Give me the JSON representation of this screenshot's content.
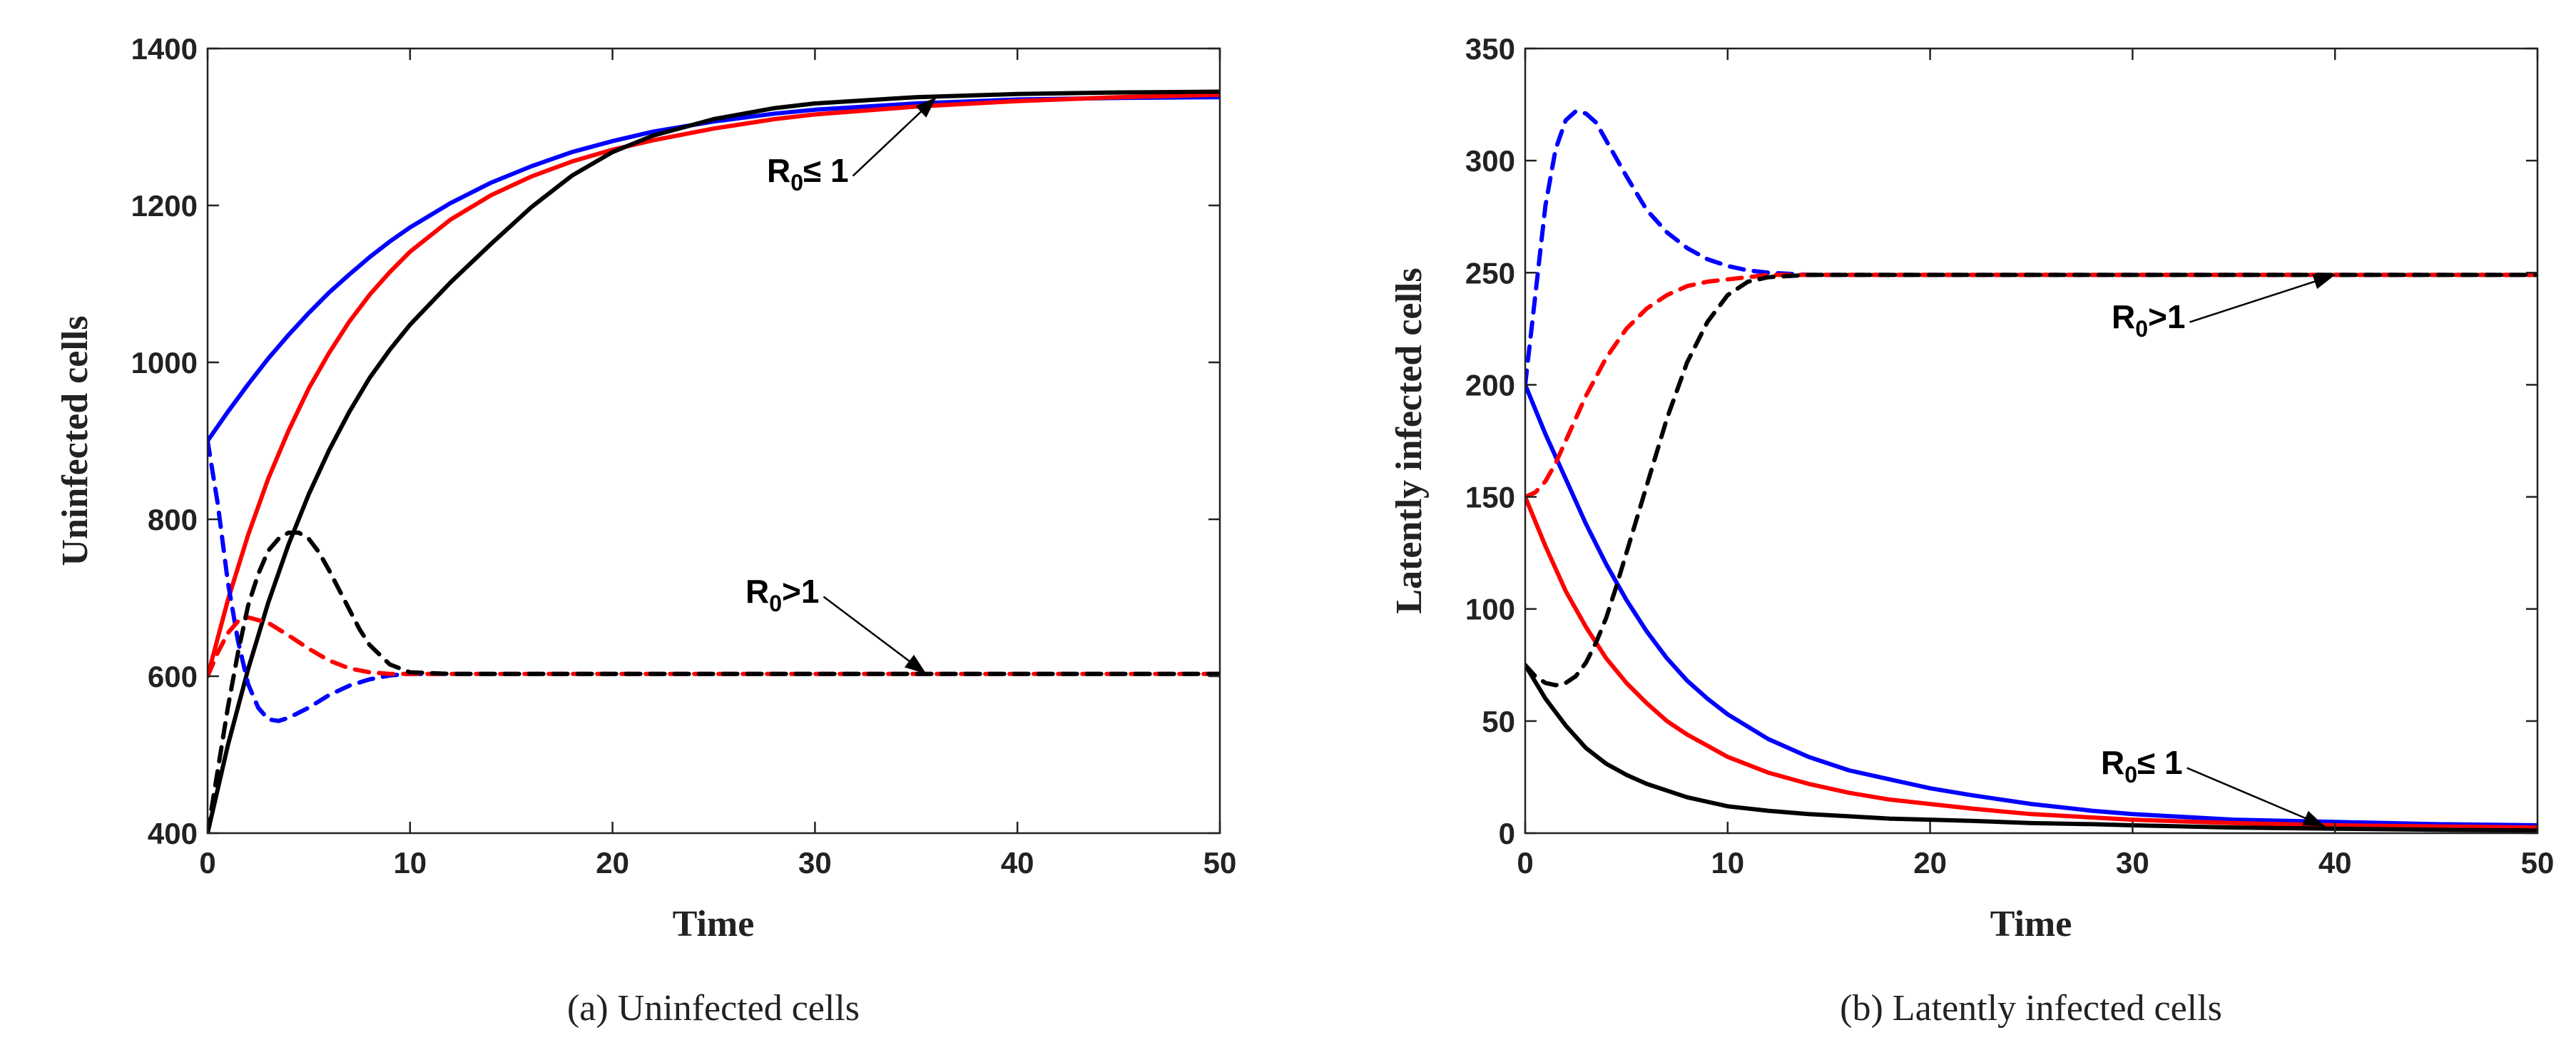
{
  "chart_data": [
    {
      "type": "line",
      "caption": "(a)  Uninfected cells",
      "xlabel": "Time",
      "ylabel": "Uninfected cells",
      "xlim": [
        0,
        50
      ],
      "ylim": [
        400,
        1400
      ],
      "xticks": [
        0,
        10,
        20,
        30,
        40,
        50
      ],
      "yticks": [
        400,
        600,
        800,
        1000,
        1200,
        1400
      ],
      "grid": false,
      "annotations": [
        {
          "main": "R",
          "sub": "0",
          "rest": "≤ 1",
          "points_to": {
            "x": 36,
            "y": 1338
          }
        },
        {
          "main": "R",
          "sub": "0",
          "rest": ">1",
          "points_to": {
            "x": 35.5,
            "y": 603
          }
        }
      ],
      "series": [
        {
          "name": "solid-blue",
          "color": "#0000ff",
          "dash": false,
          "x": [
            0,
            1,
            2,
            3,
            4,
            5,
            6,
            7,
            8,
            9,
            10,
            12,
            14,
            16,
            18,
            20,
            22,
            25,
            28,
            30,
            35,
            40,
            45,
            50
          ],
          "y": [
            900,
            937,
            972,
            1005,
            1035,
            1063,
            1089,
            1112,
            1134,
            1154,
            1172,
            1203,
            1229,
            1250,
            1268,
            1282,
            1294,
            1307,
            1317,
            1322,
            1330,
            1335,
            1337,
            1338
          ]
        },
        {
          "name": "solid-red",
          "color": "#ff0000",
          "dash": false,
          "x": [
            0,
            1,
            2,
            3,
            4,
            5,
            6,
            7,
            8,
            9,
            10,
            12,
            14,
            16,
            18,
            20,
            22,
            25,
            28,
            30,
            35,
            40,
            45,
            50
          ],
          "y": [
            600,
            697,
            780,
            852,
            913,
            967,
            1012,
            1052,
            1086,
            1115,
            1141,
            1182,
            1213,
            1237,
            1256,
            1271,
            1283,
            1298,
            1310,
            1316,
            1326,
            1333,
            1338,
            1341
          ]
        },
        {
          "name": "solid-black",
          "color": "#000000",
          "dash": false,
          "x": [
            0,
            1,
            2,
            3,
            4,
            5,
            6,
            7,
            8,
            9,
            10,
            12,
            14,
            16,
            18,
            20,
            22,
            25,
            28,
            30,
            35,
            40,
            45,
            50
          ],
          "y": [
            400,
            512,
            609,
            694,
            768,
            832,
            888,
            937,
            980,
            1016,
            1048,
            1102,
            1151,
            1198,
            1238,
            1268,
            1289,
            1310,
            1324,
            1330,
            1338,
            1342,
            1344,
            1345
          ]
        },
        {
          "name": "dashed-blue",
          "color": "#0000ff",
          "dash": true,
          "x": [
            0,
            0.5,
            1,
            1.5,
            2,
            2.5,
            3,
            3.5,
            4,
            5,
            6,
            7,
            8,
            9,
            10,
            12,
            15,
            20,
            30,
            40,
            50
          ],
          "y": [
            900,
            820,
            720,
            645,
            590,
            560,
            545,
            543,
            547,
            560,
            576,
            588,
            596,
            601,
            603,
            603,
            603,
            603,
            603,
            603,
            603
          ]
        },
        {
          "name": "dashed-red",
          "color": "#ff0000",
          "dash": true,
          "x": [
            0,
            0.5,
            1,
            1.5,
            2,
            3,
            4,
            5,
            6,
            7,
            8,
            9,
            10,
            12,
            15,
            20,
            30,
            40,
            50
          ],
          "y": [
            600,
            630,
            655,
            670,
            675,
            668,
            652,
            635,
            620,
            610,
            605,
            603,
            603,
            603,
            603,
            603,
            603,
            603,
            603
          ]
        },
        {
          "name": "dashed-black",
          "color": "#000000",
          "dash": true,
          "x": [
            0,
            0.5,
            1,
            1.5,
            2,
            2.5,
            3,
            3.5,
            4,
            4.5,
            5,
            5.5,
            6,
            6.5,
            7,
            7.5,
            8,
            9,
            10,
            12,
            15,
            20,
            30,
            40,
            50
          ],
          "y": [
            400,
            480,
            560,
            630,
            690,
            730,
            760,
            775,
            783,
            783,
            775,
            758,
            735,
            710,
            685,
            660,
            640,
            615,
            605,
            603,
            603,
            603,
            603,
            603,
            603
          ]
        }
      ]
    },
    {
      "type": "line",
      "caption": "(b)  Latently infected cells",
      "xlabel": "Time",
      "ylabel": "Latently infected cells",
      "xlim": [
        0,
        50
      ],
      "ylim": [
        0,
        350
      ],
      "xticks": [
        0,
        10,
        20,
        30,
        40,
        50
      ],
      "yticks": [
        0,
        50,
        100,
        150,
        200,
        250,
        300,
        350
      ],
      "grid": false,
      "annotations": [
        {
          "main": "R",
          "sub": "0",
          "rest": ">1",
          "points_to": {
            "x": 40,
            "y": 249
          }
        },
        {
          "main": "R",
          "sub": "0",
          "rest": "≤ 1",
          "points_to": {
            "x": 39.5,
            "y": 3
          }
        }
      ],
      "series": [
        {
          "name": "solid-blue",
          "color": "#0000ff",
          "dash": false,
          "x": [
            0,
            1,
            2,
            3,
            4,
            5,
            6,
            7,
            8,
            9,
            10,
            12,
            14,
            16,
            18,
            20,
            22,
            25,
            28,
            30,
            35,
            40,
            45,
            50
          ],
          "y": [
            200,
            178,
            158,
            138,
            120,
            104,
            90,
            78,
            68,
            60,
            53,
            42,
            34,
            28,
            24,
            20,
            17,
            13,
            10,
            8.5,
            6,
            5,
            4,
            3.5
          ]
        },
        {
          "name": "solid-red",
          "color": "#ff0000",
          "dash": false,
          "x": [
            0,
            1,
            2,
            3,
            4,
            5,
            6,
            7,
            8,
            9,
            10,
            12,
            14,
            16,
            18,
            20,
            22,
            25,
            28,
            30,
            35,
            40,
            45,
            50
          ],
          "y": [
            150,
            128,
            108,
            92,
            78,
            67,
            58,
            50,
            44,
            39,
            34,
            27,
            22,
            18,
            15,
            13,
            11,
            8.5,
            7,
            6,
            4.5,
            3.5,
            3,
            2.5
          ]
        },
        {
          "name": "solid-black",
          "color": "#000000",
          "dash": false,
          "x": [
            0,
            1,
            2,
            3,
            4,
            5,
            6,
            7,
            8,
            9,
            10,
            12,
            14,
            16,
            18,
            20,
            22,
            25,
            28,
            30,
            35,
            40,
            45,
            50
          ],
          "y": [
            75,
            60,
            48,
            38,
            31,
            26,
            22,
            19,
            16,
            14,
            12,
            10,
            8.5,
            7.5,
            6.5,
            6,
            5.5,
            4.5,
            4,
            3.5,
            2.5,
            2,
            1.5,
            1.2
          ]
        },
        {
          "name": "dashed-blue",
          "color": "#0000ff",
          "dash": true,
          "x": [
            0,
            0.5,
            1,
            1.5,
            2,
            2.5,
            3,
            3.5,
            4,
            5,
            6,
            7,
            8,
            9,
            10,
            11,
            12,
            14,
            16,
            20,
            30,
            40,
            50
          ],
          "y": [
            200,
            240,
            280,
            305,
            318,
            322,
            321,
            317,
            309,
            293,
            278,
            268,
            261,
            256,
            253,
            251,
            250,
            249,
            249,
            249,
            249,
            249,
            249
          ]
        },
        {
          "name": "dashed-red",
          "color": "#ff0000",
          "dash": true,
          "x": [
            0,
            0.5,
            1,
            1.5,
            2,
            3,
            4,
            5,
            6,
            7,
            8,
            9,
            10,
            11,
            12,
            14,
            16,
            20,
            30,
            40,
            50
          ],
          "y": [
            150,
            152,
            157,
            165,
            175,
            195,
            212,
            225,
            234,
            240,
            244,
            246,
            247,
            248,
            249,
            249,
            249,
            249,
            249,
            249,
            249
          ]
        },
        {
          "name": "dashed-black",
          "color": "#000000",
          "dash": true,
          "x": [
            0,
            0.5,
            1,
            1.5,
            2,
            2.5,
            3,
            3.5,
            4,
            4.5,
            5,
            6,
            7,
            8,
            9,
            10,
            11,
            12,
            14,
            16,
            20,
            30,
            40,
            50
          ],
          "y": [
            75,
            70,
            67,
            66,
            67,
            70,
            76,
            85,
            96,
            110,
            125,
            155,
            185,
            210,
            228,
            240,
            246,
            248,
            249,
            249,
            249,
            249,
            249,
            249
          ]
        }
      ]
    }
  ]
}
